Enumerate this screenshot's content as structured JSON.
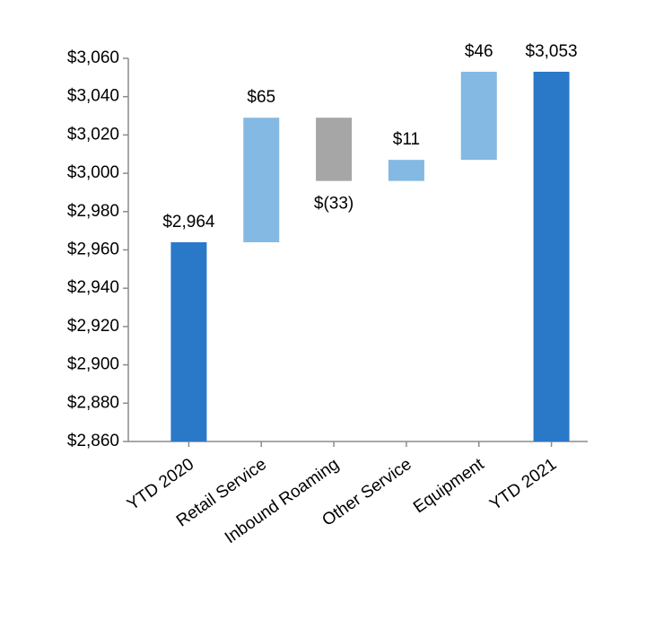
{
  "chart_data": {
    "type": "waterfall",
    "categories": [
      "YTD 2020",
      "Retail Service",
      "Inbound Roaming",
      "Other Service",
      "Equipment",
      "YTD 2021"
    ],
    "values": [
      2964,
      65,
      -33,
      11,
      46,
      3053
    ],
    "value_labels": [
      "$2,964",
      "$65",
      "$(33)",
      "$11",
      "$46",
      "$3,053"
    ],
    "totals": [
      true,
      false,
      false,
      false,
      false,
      true
    ],
    "colors": [
      "#2a78c8",
      "#83b9e2",
      "#a6a6a6",
      "#83b9e2",
      "#83b9e2",
      "#2a78c8"
    ],
    "ylim": [
      2860,
      3060
    ],
    "yticks": [
      {
        "value": 2860,
        "label": "$2,860"
      },
      {
        "value": 2880,
        "label": "$2,880"
      },
      {
        "value": 2900,
        "label": "$2,900"
      },
      {
        "value": 2920,
        "label": "$2,920"
      },
      {
        "value": 2940,
        "label": "$2,940"
      },
      {
        "value": 2960,
        "label": "$2,960"
      },
      {
        "value": 2980,
        "label": "$2,980"
      },
      {
        "value": 3000,
        "label": "$3,000"
      },
      {
        "value": 3020,
        "label": "$3,020"
      },
      {
        "value": 3040,
        "label": "$3,040"
      },
      {
        "value": 3060,
        "label": "$3,060"
      }
    ]
  }
}
